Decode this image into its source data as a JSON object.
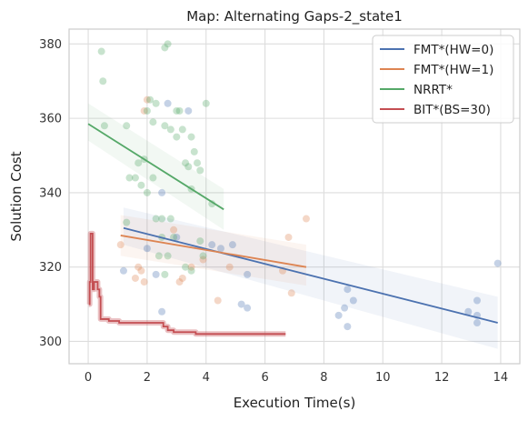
{
  "chart_data": {
    "type": "scatter",
    "title": "Map: Alternating Gaps-2_state1",
    "xlabel": "Execution Time(s)",
    "ylabel": "Solution Cost",
    "xlim": [
      -0.65,
      14.65
    ],
    "ylim": [
      294,
      384
    ],
    "xticks": [
      0,
      2,
      4,
      6,
      8,
      10,
      12,
      14
    ],
    "yticks": [
      300,
      320,
      340,
      360,
      380
    ],
    "grid": true,
    "legend_position": "top-right",
    "series": [
      {
        "name": "FMT*(HW=0)",
        "color": "#4c72b0",
        "points": [
          [
            1.2,
            319
          ],
          [
            2.0,
            325
          ],
          [
            2.3,
            318
          ],
          [
            2.5,
            340
          ],
          [
            2.7,
            364
          ],
          [
            2.5,
            308
          ],
          [
            3.0,
            328
          ],
          [
            3.4,
            362
          ],
          [
            4.2,
            326
          ],
          [
            4.5,
            325
          ],
          [
            4.9,
            326
          ],
          [
            5.2,
            310
          ],
          [
            5.4,
            309
          ],
          [
            5.4,
            318
          ],
          [
            8.5,
            307
          ],
          [
            8.7,
            309
          ],
          [
            8.8,
            304
          ],
          [
            8.8,
            314
          ],
          [
            9.0,
            311
          ],
          [
            12.9,
            308
          ],
          [
            13.2,
            311
          ],
          [
            13.2,
            307
          ],
          [
            13.2,
            305
          ],
          [
            13.9,
            321
          ]
        ],
        "fit": {
          "x": [
            1.2,
            13.9
          ],
          "y": [
            330.5,
            305
          ],
          "band_lower": [
            326,
            298
          ],
          "band_upper": [
            336,
            312
          ]
        }
      },
      {
        "name": "FMT*(HW=1)",
        "color": "#dd8452",
        "points": [
          [
            1.1,
            326
          ],
          [
            1.6,
            317
          ],
          [
            1.7,
            320
          ],
          [
            1.8,
            319
          ],
          [
            1.9,
            316
          ],
          [
            1.9,
            362
          ],
          [
            2.0,
            365
          ],
          [
            2.9,
            330
          ],
          [
            3.1,
            316
          ],
          [
            3.2,
            317
          ],
          [
            3.5,
            320
          ],
          [
            3.9,
            322
          ],
          [
            4.4,
            311
          ],
          [
            4.8,
            320
          ],
          [
            6.6,
            319
          ],
          [
            6.8,
            328
          ],
          [
            6.9,
            313
          ],
          [
            7.4,
            333
          ]
        ],
        "fit": {
          "x": [
            1.1,
            7.4
          ],
          "y": [
            328.5,
            320
          ],
          "band_lower": [
            323,
            315
          ],
          "band_upper": [
            334,
            326
          ]
        }
      },
      {
        "name": "NRRT*",
        "color": "#55a868",
        "points": [
          [
            0.45,
            378
          ],
          [
            0.5,
            370
          ],
          [
            0.55,
            358
          ],
          [
            1.3,
            332
          ],
          [
            1.3,
            358
          ],
          [
            1.4,
            344
          ],
          [
            1.6,
            344
          ],
          [
            1.7,
            348
          ],
          [
            1.8,
            342
          ],
          [
            1.9,
            349
          ],
          [
            2.0,
            362
          ],
          [
            2.0,
            340
          ],
          [
            2.1,
            365
          ],
          [
            2.2,
            359
          ],
          [
            2.2,
            344
          ],
          [
            2.3,
            364
          ],
          [
            2.3,
            333
          ],
          [
            2.4,
            323
          ],
          [
            2.5,
            328
          ],
          [
            2.5,
            333
          ],
          [
            2.6,
            379
          ],
          [
            2.6,
            358
          ],
          [
            2.6,
            318
          ],
          [
            2.7,
            323
          ],
          [
            2.7,
            380
          ],
          [
            2.8,
            357
          ],
          [
            2.8,
            333
          ],
          [
            2.9,
            328
          ],
          [
            3.0,
            355
          ],
          [
            3.0,
            362
          ],
          [
            3.1,
            362
          ],
          [
            3.2,
            357
          ],
          [
            3.3,
            348
          ],
          [
            3.4,
            347
          ],
          [
            3.5,
            341
          ],
          [
            3.5,
            355
          ],
          [
            3.6,
            351
          ],
          [
            3.7,
            348
          ],
          [
            3.8,
            346
          ],
          [
            3.8,
            327
          ],
          [
            3.9,
            323
          ],
          [
            4.0,
            364
          ],
          [
            4.2,
            337
          ],
          [
            3.3,
            320
          ],
          [
            3.5,
            319
          ]
        ],
        "fit": {
          "x": [
            0.0,
            4.6
          ],
          "y": [
            358.5,
            335.5
          ],
          "band_lower": [
            354,
            330
          ],
          "band_upper": [
            364,
            341
          ]
        }
      },
      {
        "name": "BIT*(BS=30)",
        "color": "#c44e52",
        "step": [
          [
            0.02,
            310
          ],
          [
            0.05,
            316
          ],
          [
            0.08,
            329
          ],
          [
            0.12,
            329
          ],
          [
            0.15,
            314
          ],
          [
            0.2,
            316
          ],
          [
            0.28,
            316
          ],
          [
            0.32,
            314
          ],
          [
            0.38,
            312
          ],
          [
            0.42,
            306
          ],
          [
            0.6,
            306
          ],
          [
            0.7,
            305.5
          ],
          [
            1.0,
            305.5
          ],
          [
            1.05,
            305
          ],
          [
            2.5,
            305
          ],
          [
            2.55,
            304
          ],
          [
            2.7,
            303
          ],
          [
            2.9,
            302.5
          ],
          [
            3.6,
            302.5
          ],
          [
            3.65,
            302
          ],
          [
            6.7,
            302
          ]
        ]
      }
    ]
  }
}
